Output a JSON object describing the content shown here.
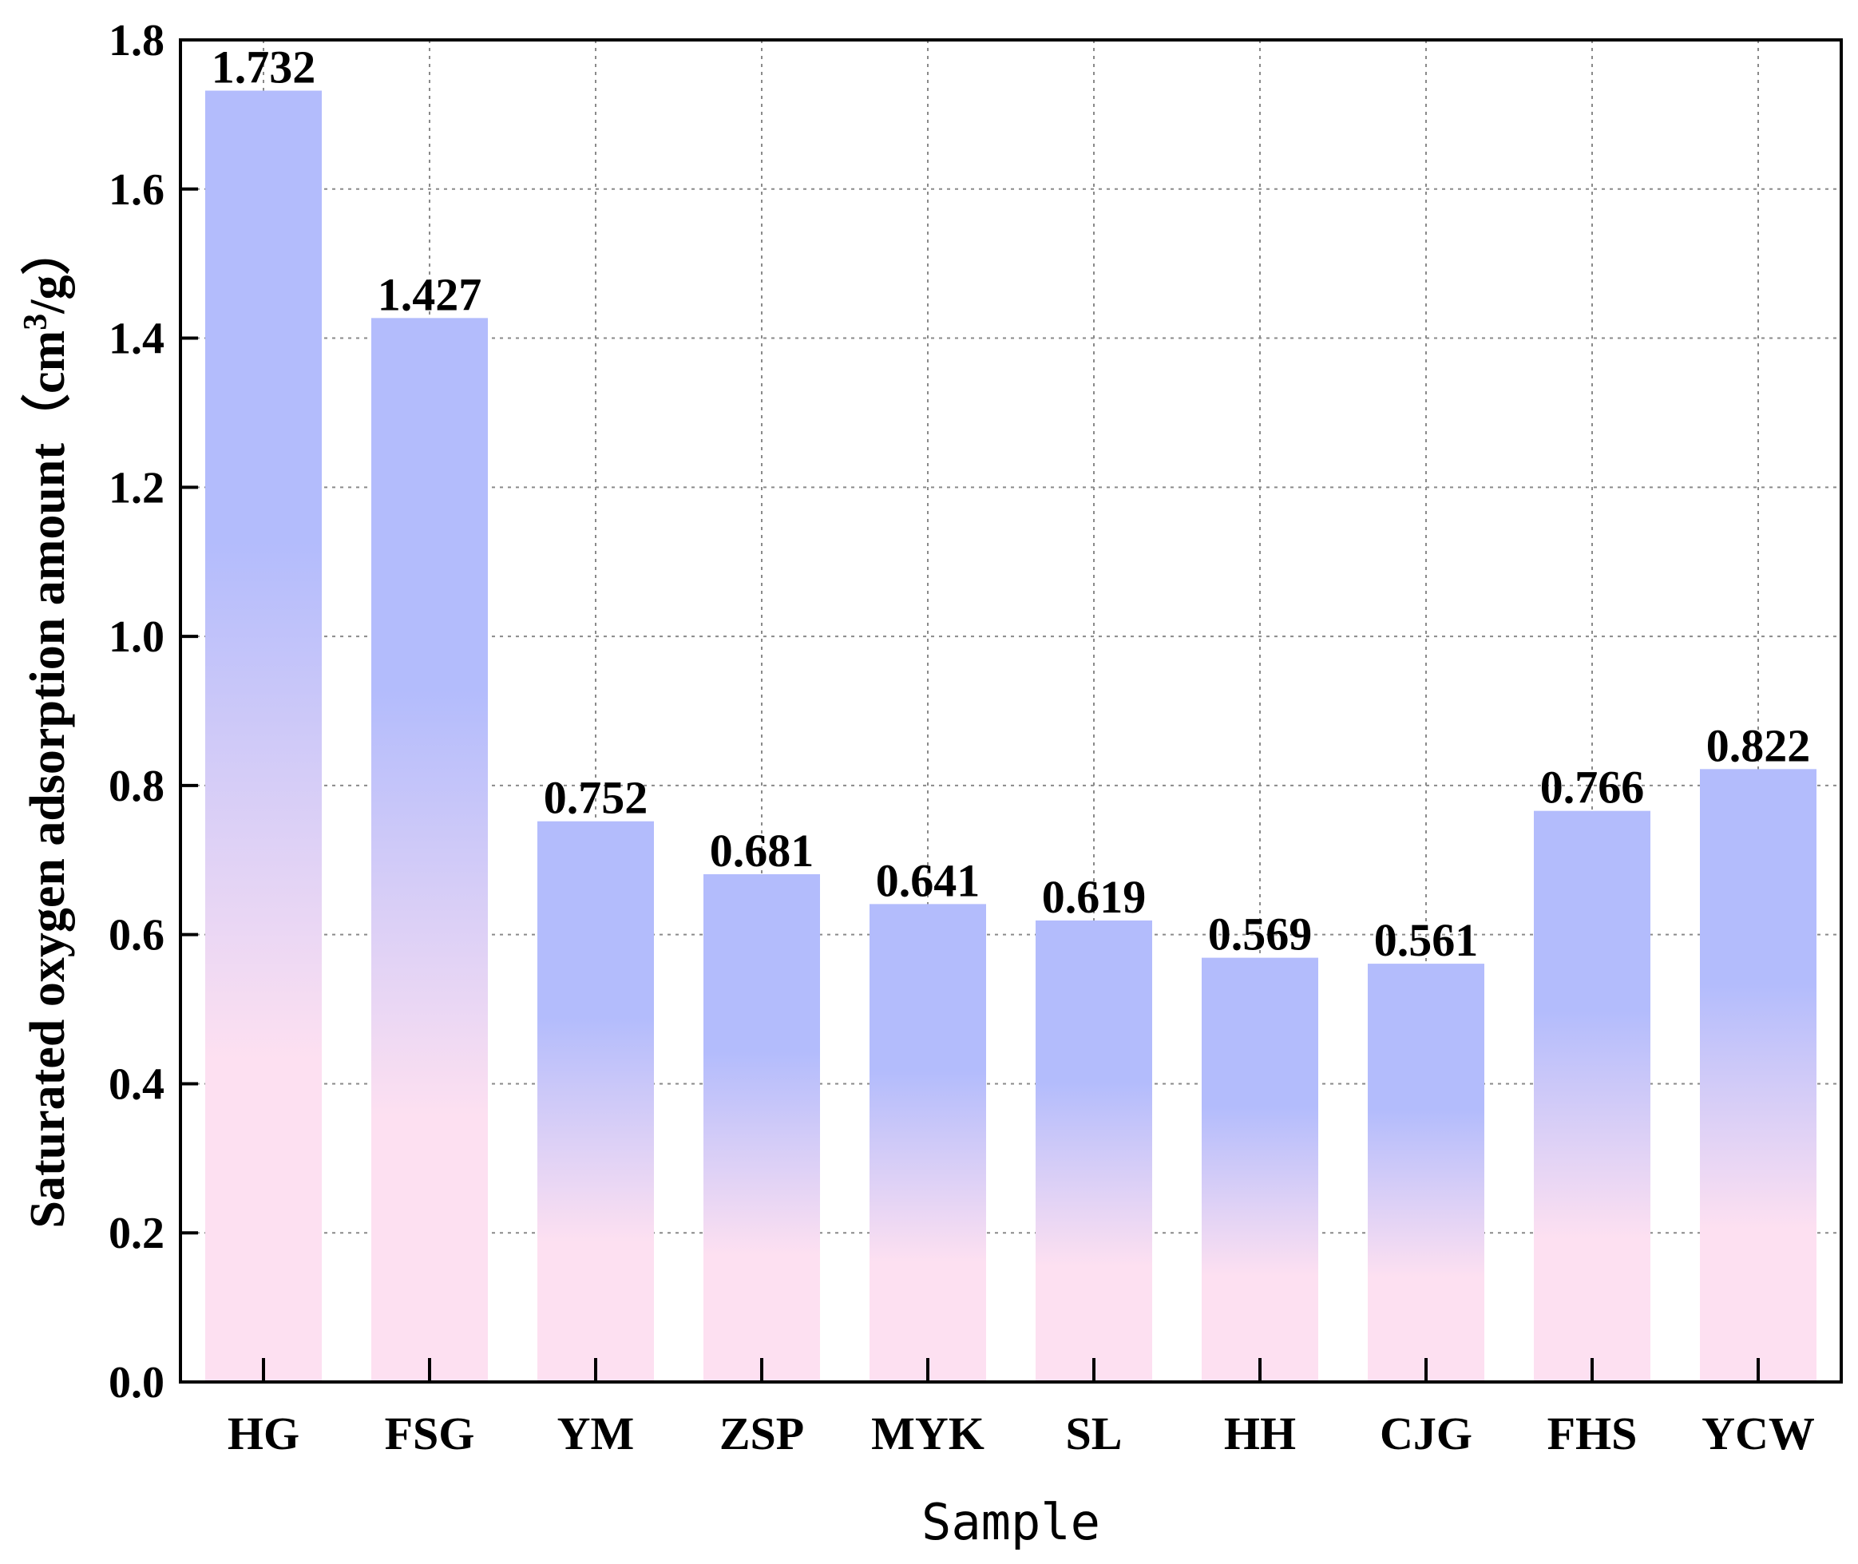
{
  "chart_data": {
    "type": "bar",
    "title": "",
    "xlabel": "Sample",
    "ylabel": {
      "prefix": "Saturated oxygen adsorption amount（cm",
      "sup": "3",
      "suffix": "/g）"
    },
    "categories": [
      "HG",
      "FSG",
      "YM",
      "ZSP",
      "MYK",
      "SL",
      "HH",
      "CJG",
      "FHS",
      "YCW"
    ],
    "values": [
      1.732,
      1.427,
      0.752,
      0.681,
      0.641,
      0.619,
      0.569,
      0.561,
      0.766,
      0.822
    ],
    "data_labels": [
      "1.732",
      "1.427",
      "0.752",
      "0.681",
      "0.641",
      "0.619",
      "0.569",
      "0.561",
      "0.766",
      "0.822"
    ],
    "ylim": [
      0,
      1.8
    ],
    "yticks": [
      0.0,
      0.2,
      0.4,
      0.6,
      0.8,
      1.0,
      1.2,
      1.4,
      1.6,
      1.8
    ],
    "ytick_labels": [
      "0.0",
      "0.2",
      "0.4",
      "0.6",
      "0.8",
      "1.0",
      "1.2",
      "1.4",
      "1.6",
      "1.8"
    ],
    "grid": true,
    "bar_gradient": {
      "top": "#b3bcfc",
      "bottom": "#fde0f1"
    }
  }
}
